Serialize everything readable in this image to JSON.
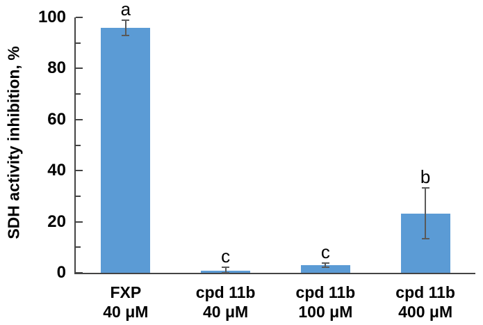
{
  "chart_data": {
    "type": "bar",
    "title": "",
    "xlabel": "",
    "ylabel": "SDH activity inhibition, %",
    "ylim": [
      0,
      100
    ],
    "ytick_major": 20,
    "ytick_minor": 10,
    "ytick_labels": [
      "0",
      "20",
      "40",
      "60",
      "80",
      "100"
    ],
    "categories": [
      "FXP\n40 μM",
      "cpd 11b\n40 μM",
      "cpd 11b\n100 μM",
      "cpd 11b\n400 μM"
    ],
    "values": [
      96,
      0.7,
      3,
      23.3
    ],
    "error_bars": [
      3,
      1.5,
      0.8,
      10
    ],
    "sig_letters": [
      "a",
      "c",
      "c",
      "b"
    ],
    "grid": false,
    "legend": "none",
    "colors": {
      "bar_fill": "#5B9BD5",
      "error_bar": "#595959",
      "axis": "#444444",
      "text": "#000000",
      "background": "#ffffff"
    }
  }
}
